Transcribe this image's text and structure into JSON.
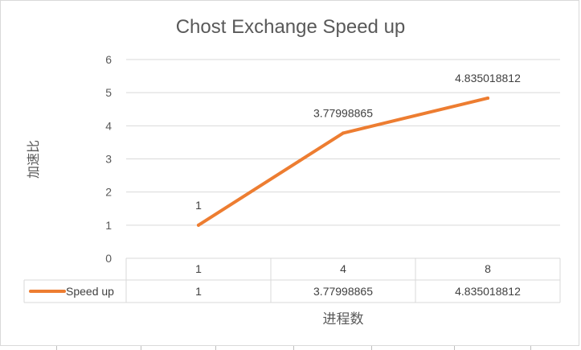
{
  "chart_data": {
    "type": "line",
    "title": "Chost Exchange Speed up",
    "xlabel": "进程数",
    "ylabel": "加速比",
    "categories": [
      "1",
      "4",
      "8"
    ],
    "series": [
      {
        "name": "Speed up",
        "values": [
          1,
          3.77998865,
          4.835018812
        ],
        "labels": [
          "1",
          "3.77998865",
          "4.835018812"
        ],
        "color": "#ed7d31"
      }
    ],
    "ylim": [
      0,
      6
    ],
    "yticks": [
      "0",
      "1",
      "2",
      "3",
      "4",
      "5",
      "6"
    ],
    "grid": true,
    "data_table": true,
    "gridline_color": "#d9d9d9"
  }
}
